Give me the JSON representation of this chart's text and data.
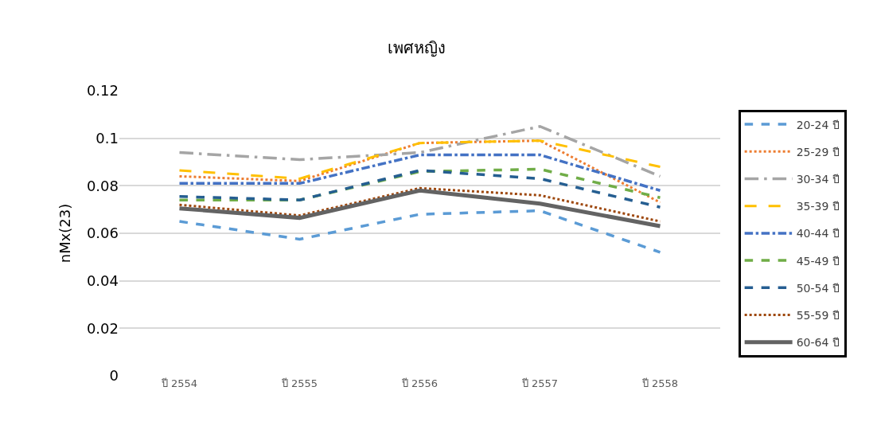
{
  "chart_data": {
    "type": "line",
    "title": "เพศหญิง",
    "ylabel": "nMx(23)",
    "categories": [
      "ปี 2554",
      "ปี 2555",
      "ปี 2556",
      "ปี 2557",
      "ปี 2558"
    ],
    "ylim": [
      0,
      0.12
    ],
    "yticks": [
      0,
      0.02,
      0.04,
      0.06,
      0.08,
      0.1,
      0.12
    ],
    "grid": "y",
    "legend": "right",
    "marker": "none",
    "series": [
      {
        "name": "20-24 ปี",
        "color": "#5b9bd5",
        "line_style": "dashed",
        "values": [
          0.065,
          0.0575,
          0.068,
          0.0695,
          0.052
        ]
      },
      {
        "name": "25-29 ปี",
        "color": "#ed7d31",
        "line_style": "dotted",
        "values": [
          0.084,
          0.082,
          0.098,
          0.099,
          0.073
        ]
      },
      {
        "name": "30-34 ปี",
        "color": "#a5a5a5",
        "line_style": "longdashdot",
        "values": [
          0.094,
          0.091,
          0.094,
          0.105,
          0.084
        ]
      },
      {
        "name": "35-39 ปี",
        "color": "#ffc000",
        "line_style": "longdash",
        "values": [
          0.0865,
          0.083,
          0.098,
          0.099,
          0.088
        ]
      },
      {
        "name": "40-44 ปี",
        "color": "#4472c4",
        "line_style": "dashdot",
        "values": [
          0.081,
          0.081,
          0.093,
          0.093,
          0.078
        ]
      },
      {
        "name": "45-49 ปี",
        "color": "#70ad47",
        "line_style": "dashed",
        "values": [
          0.074,
          0.074,
          0.086,
          0.087,
          0.075
        ]
      },
      {
        "name": "50-54 ปี",
        "color": "#255e91",
        "line_style": "dashed",
        "values": [
          0.0755,
          0.074,
          0.0865,
          0.083,
          0.071
        ]
      },
      {
        "name": "55-59 ปี",
        "color": "#9e480e",
        "line_style": "dotted",
        "values": [
          0.072,
          0.0675,
          0.079,
          0.076,
          0.065
        ]
      },
      {
        "name": "60-64 ปี",
        "color": "#636363",
        "line_style": "solid",
        "values": [
          0.0705,
          0.0665,
          0.078,
          0.0725,
          0.063
        ]
      }
    ]
  }
}
